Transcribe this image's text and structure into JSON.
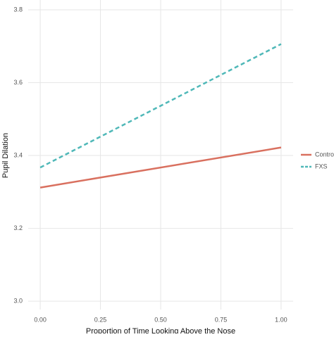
{
  "chart_data": {
    "type": "line",
    "x_label": "Proportion of Time Looking Above the Nose",
    "y_label": "Pupil Dilation",
    "x": [
      0,
      1
    ],
    "series": [
      {
        "name": "Control",
        "color": "#d9705f",
        "dash": false,
        "values": [
          3.312,
          3.422
        ]
      },
      {
        "name": "FXS",
        "color": "#4fb8b8",
        "dash": true,
        "values": [
          3.367,
          3.706
        ]
      }
    ],
    "xlim": [
      -0.05,
      1.05
    ],
    "xticks": [
      {
        "value": 0,
        "label": "0.00"
      },
      {
        "value": 0.25,
        "label": "0.25"
      },
      {
        "value": 0.5,
        "label": "0.50"
      },
      {
        "value": 0.75,
        "label": "0.75"
      },
      {
        "value": 1,
        "label": "1.00"
      }
    ],
    "ylim": [
      2.977,
      3.827
    ],
    "yticks": [
      {
        "value": 3,
        "label": "3.0"
      },
      3.2,
      3.4,
      3.6,
      3.8
    ],
    "grid": true,
    "legend": "right"
  }
}
